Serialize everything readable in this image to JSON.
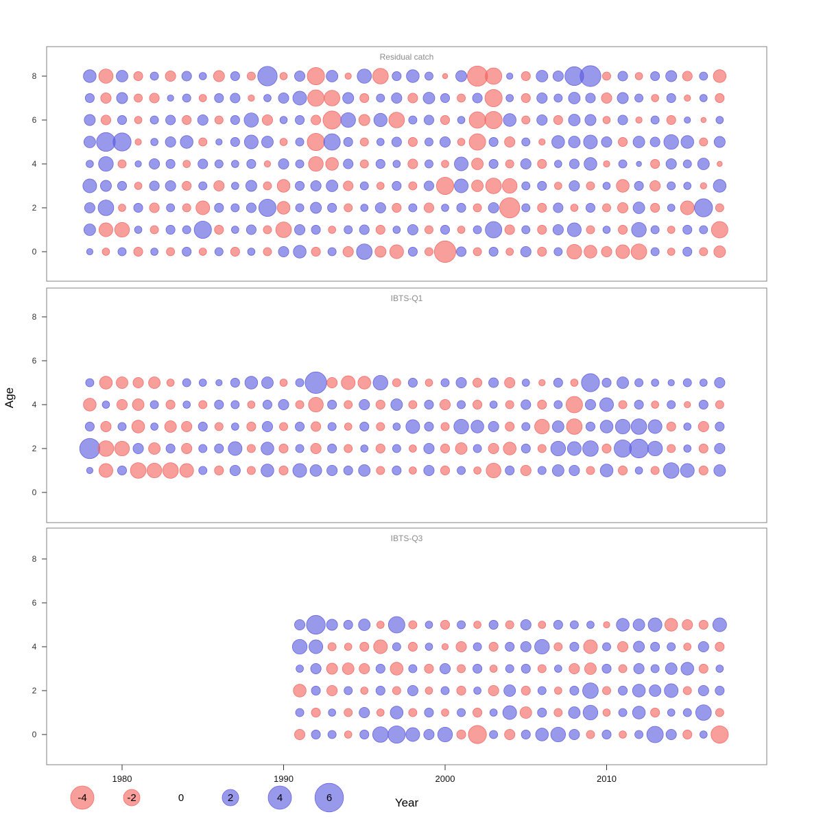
{
  "axes": {
    "xlabel": "Year",
    "ylabel": "Age",
    "x_ticks": [
      1980,
      1990,
      2000,
      2010
    ],
    "y_ticks": [
      0,
      2,
      4,
      6,
      8
    ]
  },
  "legend": {
    "values": [
      -4,
      -2,
      0,
      2,
      4,
      6
    ]
  },
  "style": {
    "negative_color": "#f4635d",
    "positive_color": "#5a5ae0",
    "bubble_opacity": 0.62,
    "frame_color": "#808080",
    "title_color": "#8a8a8a"
  },
  "chart_data": [
    {
      "type": "bubble",
      "title": "Residual catch",
      "start_year": 1978,
      "x_is": "year",
      "y_is": "age",
      "rows": [
        {
          "age": 0,
          "values": [
            0.3,
            -0.4,
            0.5,
            -0.6,
            0.4,
            -0.5,
            0.6,
            -0.4,
            0.5,
            -0.6,
            0.4,
            -0.5,
            0.8,
            1.2,
            -0.6,
            0.5,
            -0.8,
            1.8,
            -0.9,
            -1.4,
            0.6,
            -0.5,
            -3.4,
            0.7,
            -0.5,
            0.6,
            -0.4,
            0.8,
            -0.6,
            0.5,
            -1.6,
            -1.2,
            -0.8,
            -1.4,
            -1.8,
            0.5,
            -0.4,
            0.6,
            -0.5,
            -1.0
          ]
        },
        {
          "age": 1,
          "values": [
            1.0,
            -1.4,
            -1.6,
            0.4,
            -0.5,
            0.6,
            0.5,
            2.2,
            -0.6,
            0.4,
            0.7,
            -0.5,
            -1.8,
            0.8,
            0.6,
            -0.4,
            0.5,
            0.7,
            -0.6,
            0.4,
            0.8,
            -0.5,
            0.6,
            -0.4,
            0.5,
            2.0,
            -0.7,
            0.5,
            -0.6,
            0.8,
            1.4,
            -0.5,
            0.4,
            -0.6,
            1.6,
            0.5,
            -0.4,
            0.6,
            0.5,
            -2.0
          ]
        },
        {
          "age": 2,
          "values": [
            0.8,
            1.8,
            -0.4,
            0.6,
            -0.7,
            0.5,
            -0.5,
            -1.4,
            0.6,
            0.5,
            0.7,
            2.2,
            -1.2,
            0.5,
            0.9,
            0.6,
            -0.5,
            0.4,
            0.8,
            -0.6,
            0.5,
            -0.7,
            0.4,
            0.6,
            -0.5,
            0.8,
            -3.0,
            0.5,
            -0.6,
            0.7,
            -0.4,
            0.6,
            -0.5,
            -0.8,
            1.0,
            -0.6,
            0.4,
            -1.4,
            2.4,
            -0.5
          ]
        },
        {
          "age": 3,
          "values": [
            1.4,
            0.9,
            0.6,
            -0.4,
            0.7,
            0.8,
            -0.6,
            0.5,
            -0.8,
            0.4,
            0.9,
            -0.5,
            -1.2,
            0.6,
            0.8,
            1.0,
            -0.7,
            0.5,
            -0.4,
            0.6,
            -0.5,
            0.7,
            -2.2,
            1.4,
            -1.0,
            -1.8,
            -1.6,
            0.5,
            0.6,
            -0.4,
            0.8,
            -0.5,
            0.4,
            -1.2,
            0.6,
            -0.8,
            0.5,
            0.4,
            -0.3,
            1.2
          ]
        },
        {
          "age": 4,
          "values": [
            0.4,
            1.6,
            -0.5,
            0.3,
            0.8,
            0.6,
            -0.4,
            0.7,
            0.5,
            0.4,
            0.6,
            -0.3,
            0.8,
            0.5,
            -1.6,
            -1.2,
            0.7,
            -0.5,
            0.6,
            0.4,
            -0.7,
            0.5,
            -0.4,
            1.4,
            -1.0,
            0.6,
            -0.5,
            0.8,
            -0.6,
            0.4,
            0.7,
            1.2,
            -0.3,
            0.5,
            0.2,
            -0.6,
            0.8,
            0.5,
            1.0,
            -0.2
          ]
        },
        {
          "age": 5,
          "values": [
            1.0,
            2.6,
            2.4,
            -0.3,
            0.4,
            0.8,
            1.2,
            -0.5,
            0.3,
            0.6,
            1.4,
            1.0,
            -0.4,
            0.5,
            -2.2,
            2.0,
            0.6,
            -0.5,
            0.4,
            0.7,
            -0.6,
            0.5,
            0.8,
            -0.4,
            -2.0,
            0.6,
            -0.8,
            0.5,
            -0.3,
            1.2,
            1.0,
            1.4,
            0.8,
            -0.6,
            1.0,
            0.7,
            1.6,
            1.2,
            -0.5,
            0.9
          ]
        },
        {
          "age": 6,
          "values": [
            0.9,
            -0.7,
            0.6,
            -0.4,
            0.5,
            0.7,
            -0.6,
            0.8,
            -0.5,
            0.6,
            1.5,
            -0.8,
            0.4,
            0.6,
            -0.7,
            -2.4,
            1.6,
            -0.9,
            1.3,
            -1.8,
            0.5,
            0.7,
            -0.6,
            0.4,
            -2.0,
            -2.2,
            1.2,
            -0.5,
            0.8,
            -0.6,
            1.0,
            0.9,
            -0.4,
            0.7,
            -0.3,
            0.5,
            -0.6,
            0.3,
            -0.2,
            0.4
          ]
        },
        {
          "age": 7,
          "values": [
            0.6,
            -0.8,
            0.9,
            -0.5,
            -0.7,
            0.3,
            0.5,
            -0.4,
            0.6,
            0.7,
            -0.3,
            0.4,
            0.8,
            1.4,
            -2.0,
            -1.8,
            0.9,
            -0.6,
            0.5,
            0.8,
            -0.7,
            1.0,
            0.6,
            -0.5,
            0.7,
            -2.2,
            0.4,
            -0.6,
            0.8,
            0.5,
            1.0,
            0.7,
            -0.8,
            0.9,
            0.5,
            -0.4,
            0.6,
            -0.3,
            0.4,
            -0.6
          ]
        },
        {
          "age": 8,
          "values": [
            1.2,
            -1.5,
            1.0,
            -0.6,
            0.5,
            -0.8,
            0.7,
            0.4,
            -0.9,
            0.6,
            -0.5,
            2.8,
            -0.4,
            0.8,
            -2.2,
            1.0,
            -0.3,
            1.5,
            -1.8,
            0.6,
            1.2,
            0.5,
            -0.2,
            0.9,
            -3.0,
            -2.0,
            0.3,
            -0.6,
            1.0,
            0.8,
            2.6,
            3.2,
            -0.5,
            0.7,
            -0.4,
            0.6,
            0.9,
            -0.7,
            0.5,
            -1.2
          ]
        }
      ]
    },
    {
      "type": "bubble",
      "title": "IBTS-Q1",
      "start_year": 1978,
      "x_is": "year",
      "y_is": "age",
      "rows": [
        {
          "age": 1,
          "values": [
            0.3,
            -1.4,
            0.6,
            -1.8,
            -1.6,
            -1.8,
            -1.4,
            0.5,
            -0.6,
            0.8,
            -0.5,
            1.2,
            -0.6,
            1.4,
            1.0,
            0.8,
            0.6,
            1.0,
            -0.5,
            0.6,
            -0.4,
            0.8,
            -0.6,
            0.5,
            -0.4,
            -1.6,
            0.6,
            -0.8,
            0.5,
            1.0,
            0.8,
            -0.5,
            1.2,
            -0.6,
            0.4,
            -0.5,
            1.8,
            1.4,
            -0.6,
            1.0
          ]
        },
        {
          "age": 2,
          "values": [
            3.0,
            -1.8,
            -1.6,
            0.8,
            -1.0,
            0.6,
            -0.8,
            0.5,
            0.6,
            1.4,
            -0.5,
            1.2,
            -0.6,
            0.5,
            -0.8,
            0.6,
            -0.5,
            0.4,
            -0.6,
            0.5,
            -0.4,
            0.8,
            -0.6,
            -1.0,
            0.5,
            -0.8,
            -1.2,
            0.6,
            -0.5,
            1.6,
            1.4,
            1.8,
            -0.6,
            2.2,
            2.6,
            1.6,
            -0.5,
            0.4,
            -0.6,
            0.8
          ]
        },
        {
          "age": 3,
          "values": [
            0.6,
            -0.8,
            0.5,
            -1.2,
            0.4,
            -1.0,
            -0.8,
            0.6,
            -0.5,
            0.4,
            -0.6,
            0.8,
            -0.5,
            0.6,
            -0.7,
            0.5,
            -0.4,
            0.6,
            -0.5,
            0.4,
            1.4,
            0.6,
            -0.5,
            1.6,
            1.2,
            0.8,
            -0.6,
            0.5,
            -1.6,
            1.0,
            -1.8,
            0.6,
            1.2,
            1.6,
            1.8,
            1.4,
            -0.6,
            0.4,
            -0.8,
            0.6
          ]
        },
        {
          "age": 4,
          "values": [
            -1.2,
            0.4,
            -0.8,
            -1.0,
            0.5,
            -0.6,
            0.4,
            -0.5,
            0.6,
            0.5,
            -0.4,
            0.6,
            0.8,
            -0.5,
            -1.6,
            0.6,
            -0.5,
            0.8,
            -0.6,
            1.0,
            -0.5,
            0.6,
            -0.8,
            0.5,
            -0.6,
            0.4,
            -0.5,
            0.7,
            -0.6,
            0.5,
            -2.0,
            0.8,
            1.4,
            -0.5,
            0.6,
            -0.4,
            0.5,
            -0.3,
            0.6,
            -0.5
          ]
        },
        {
          "age": 5,
          "values": [
            0.5,
            -1.2,
            -1.0,
            -0.8,
            -1.0,
            -0.4,
            0.5,
            0.4,
            0.3,
            0.6,
            1.2,
            1.0,
            -0.4,
            0.5,
            3.4,
            -0.8,
            -1.4,
            -1.2,
            1.6,
            -0.5,
            0.6,
            -0.4,
            0.5,
            0.8,
            -0.6,
            0.7,
            -0.8,
            0.4,
            -0.3,
            0.6,
            -0.4,
            2.4,
            0.6,
            1.0,
            0.5,
            0.4,
            0.3,
            0.5,
            0.4,
            0.8
          ]
        }
      ]
    },
    {
      "type": "bubble",
      "title": "IBTS-Q3",
      "start_year": 1991,
      "x_is": "year",
      "y_is": "age",
      "rows": [
        {
          "age": 0,
          "values": [
            -0.8,
            0.6,
            0.5,
            -0.4,
            0.6,
            1.8,
            2.2,
            1.4,
            0.8,
            1.6,
            -0.6,
            -2.4,
            0.5,
            -0.8,
            0.6,
            1.2,
            1.6,
            0.8,
            -0.5,
            0.6,
            -0.4,
            0.5,
            2.0,
            0.8,
            -0.6,
            0.4,
            -2.2
          ]
        },
        {
          "age": 1,
          "values": [
            0.5,
            -0.6,
            0.4,
            -0.5,
            0.8,
            -0.4,
            1.2,
            -0.5,
            0.6,
            -0.4,
            0.5,
            -0.6,
            0.4,
            1.4,
            -1.0,
            0.6,
            -0.5,
            1.0,
            1.6,
            -0.4,
            0.5,
            1.2,
            -0.6,
            0.4,
            0.5,
            1.8,
            -0.5
          ]
        },
        {
          "age": 2,
          "values": [
            -1.2,
            0.6,
            -0.8,
            0.5,
            -0.4,
            0.6,
            -0.5,
            0.8,
            -0.4,
            0.5,
            -0.6,
            0.4,
            -0.8,
            1.0,
            -0.6,
            0.5,
            -0.4,
            0.6,
            1.8,
            -0.5,
            0.6,
            1.2,
            1.0,
            1.4,
            -0.5,
            0.8,
            0.6
          ]
        },
        {
          "age": 3,
          "values": [
            0.4,
            0.8,
            -0.9,
            -1.0,
            -0.8,
            0.6,
            -1.2,
            0.5,
            -0.6,
            0.8,
            -0.5,
            0.6,
            -0.4,
            0.5,
            0.6,
            -0.5,
            0.4,
            -0.8,
            -1.0,
            0.6,
            -0.5,
            0.8,
            0.5,
            1.0,
            1.2,
            -0.6,
            0.4
          ]
        },
        {
          "age": 4,
          "values": [
            1.6,
            1.4,
            -0.5,
            -0.4,
            -0.6,
            -1.4,
            0.5,
            -0.6,
            0.4,
            -0.3,
            -0.8,
            0.5,
            -0.6,
            0.6,
            0.8,
            1.6,
            -0.5,
            0.6,
            -1.4,
            0.5,
            -0.8,
            0.9,
            0.6,
            0.5,
            -0.4,
            0.8,
            -0.6
          ]
        },
        {
          "age": 5,
          "values": [
            0.8,
            2.6,
            0.9,
            0.6,
            1.0,
            -0.4,
            2.0,
            -0.5,
            0.4,
            -0.6,
            0.5,
            -0.4,
            0.6,
            -0.5,
            0.8,
            -0.4,
            0.6,
            0.5,
            0.4,
            -0.3,
            1.2,
            1.0,
            1.4,
            -1.2,
            -0.8,
            -0.6,
            1.4
          ]
        }
      ]
    }
  ]
}
